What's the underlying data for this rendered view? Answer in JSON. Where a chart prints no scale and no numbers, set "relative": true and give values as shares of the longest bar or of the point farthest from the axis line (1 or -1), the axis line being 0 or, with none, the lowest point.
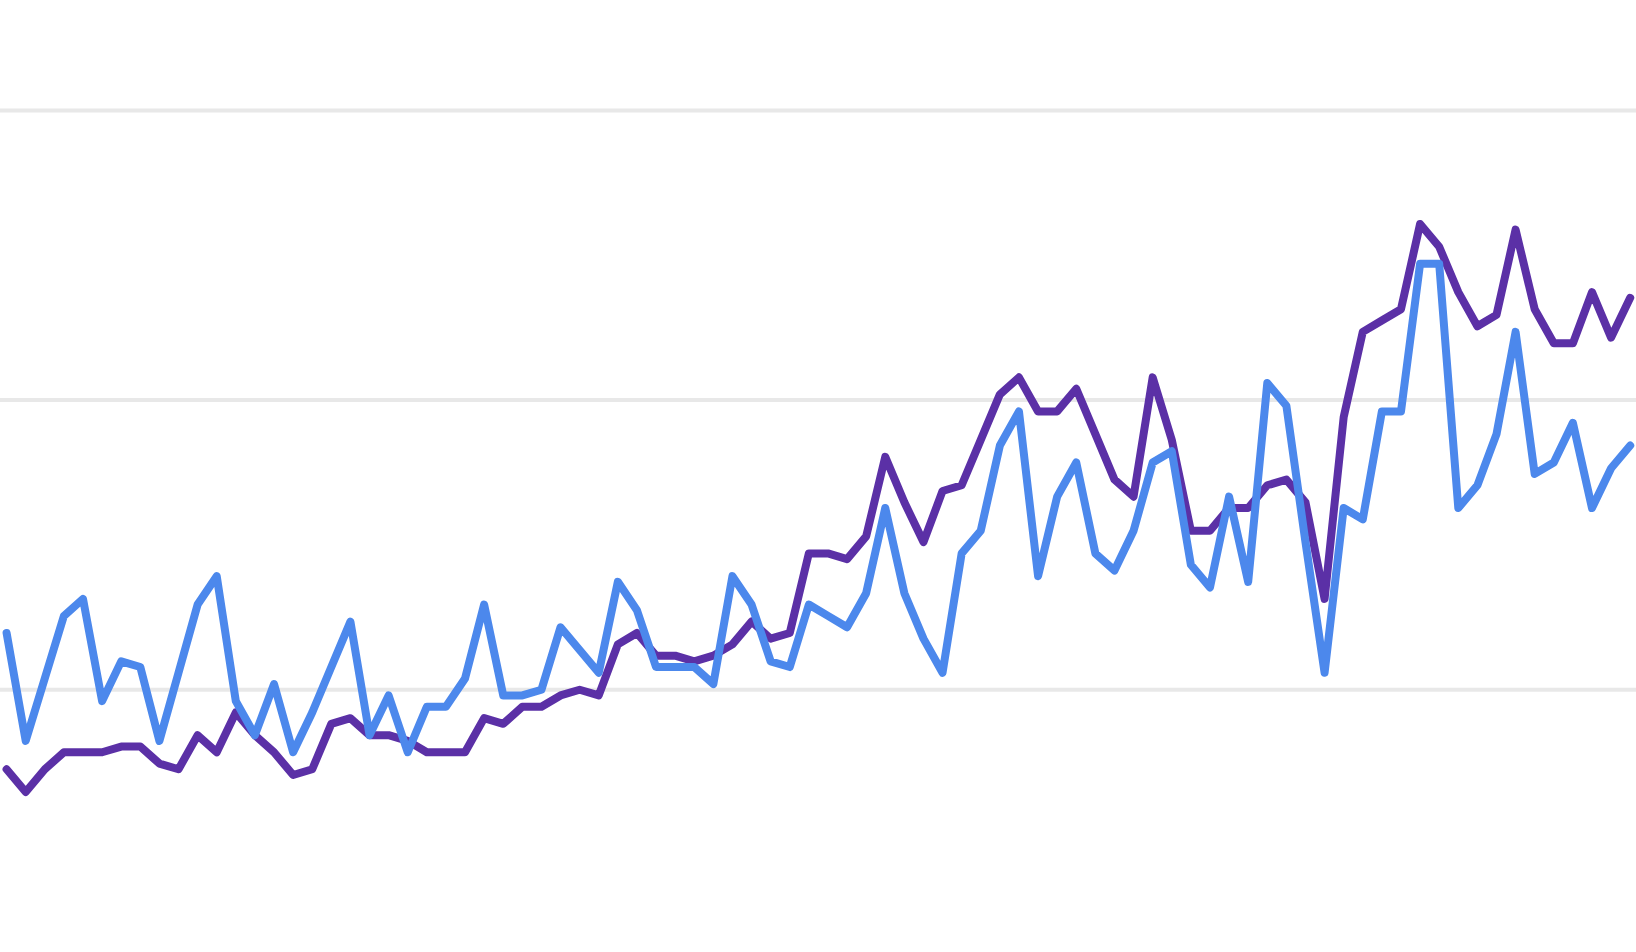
{
  "chart_data": {
    "type": "line",
    "relative": true,
    "line_style": "solid",
    "ref_lines": [
      {
        "axis": "y",
        "value": 0.18,
        "color": "#e8e8e8"
      },
      {
        "axis": "y",
        "value": 0.69,
        "color": "#e8e8e8"
      },
      {
        "axis": "y",
        "value": 1.2,
        "color": "#e8e8e8"
      }
    ],
    "categories": [
      null,
      null,
      null,
      null,
      null,
      null,
      null,
      null,
      null,
      null,
      null,
      null,
      null,
      null,
      null,
      null,
      null,
      null,
      null,
      null,
      null,
      null,
      null,
      null,
      null,
      null,
      null,
      null,
      null,
      null,
      null,
      null,
      null,
      null,
      null,
      null,
      null,
      null,
      null,
      null,
      null,
      null,
      null,
      null,
      null,
      null,
      null,
      null,
      null,
      null,
      null,
      null,
      null,
      null,
      null,
      null,
      null,
      null,
      null,
      null,
      null,
      null,
      null,
      null,
      null,
      null,
      null,
      null,
      null,
      null,
      null,
      null,
      null,
      null,
      null,
      null,
      null,
      null,
      null,
      null,
      null,
      null,
      null,
      null,
      null,
      null
    ],
    "series": [
      {
        "color": "#5b30a6",
        "values": [
          0.04,
          0,
          0.04,
          0.07,
          0.07,
          0.07,
          0.08,
          0.08,
          0.05,
          0.04,
          0.1,
          0.07,
          0.14,
          0.1,
          0.07,
          0.03,
          0.04,
          0.12,
          0.13,
          0.1,
          0.1,
          0.09,
          0.07,
          0.07,
          0.07,
          0.13,
          0.12,
          0.15,
          0.15,
          0.17,
          0.18,
          0.17,
          0.26,
          0.28,
          0.24,
          0.24,
          0.23,
          0.24,
          0.26,
          0.3,
          0.27,
          0.28,
          0.42,
          0.42,
          0.41,
          0.45,
          0.59,
          0.51,
          0.44,
          0.53,
          0.54,
          0.62,
          0.7,
          0.73,
          0.67,
          0.67,
          0.71,
          0.63,
          0.55,
          0.52,
          0.73,
          0.62,
          0.46,
          0.46,
          0.5,
          0.5,
          0.54,
          0.55,
          0.51,
          0.34,
          0.66,
          0.81,
          0.83,
          0.85,
          1,
          0.96,
          0.88,
          0.82,
          0.84,
          0.99,
          0.85,
          0.79,
          0.79,
          0.88,
          0.8,
          0.87
        ]
      },
      {
        "color": "#4c88ec",
        "values": [
          0.28,
          0.09,
          0.2,
          0.31,
          0.34,
          0.16,
          0.23,
          0.22,
          0.09,
          0.21,
          0.33,
          0.38,
          0.16,
          0.1,
          0.19,
          0.07,
          0.14,
          0.22,
          0.3,
          0.1,
          0.17,
          0.07,
          0.15,
          0.15,
          0.2,
          0.33,
          0.17,
          0.17,
          0.18,
          0.29,
          0.25,
          0.21,
          0.37,
          0.32,
          0.22,
          0.22,
          0.22,
          0.19,
          0.38,
          0.33,
          0.23,
          0.22,
          0.33,
          0.31,
          0.29,
          0.35,
          0.5,
          0.35,
          0.27,
          0.21,
          0.42,
          0.46,
          0.61,
          0.67,
          0.38,
          0.52,
          0.58,
          0.42,
          0.39,
          0.46,
          0.58,
          0.6,
          0.4,
          0.36,
          0.52,
          0.37,
          0.72,
          0.68,
          0.44,
          0.21,
          0.5,
          0.48,
          0.67,
          0.67,
          0.93,
          0.93,
          0.5,
          0.54,
          0.63,
          0.81,
          0.56,
          0.58,
          0.65,
          0.5,
          0.57,
          0.61
        ]
      }
    ]
  }
}
